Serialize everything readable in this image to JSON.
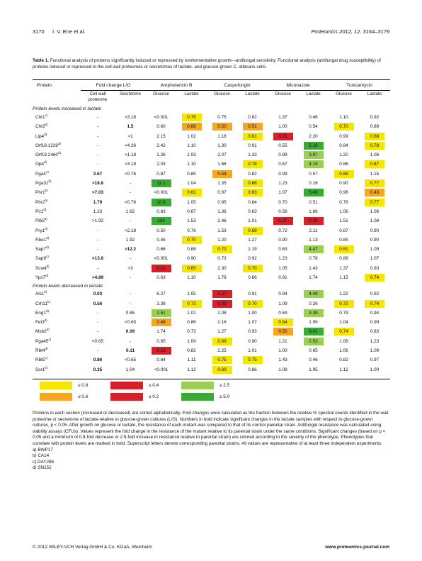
{
  "header": {
    "page_number": "3170",
    "authors": "I. V. Ene et al.",
    "journal": "Proteomics 2012, 12, 3164–3179"
  },
  "caption": {
    "label": "Table 1.",
    "text": "Functional analysis of proteins significantly induced or repressed by nonfermentative growth—antifungal sensitivity. Functional analysis (antifungal drug susceptibility) of proteins induced or repressed in the cell wall proteomes or secretomes of lactate- and glucose-grown C. albicans cells."
  },
  "colors": {
    "yellow": "#f5e600",
    "orange": "#f5a623",
    "red": "#d8202a",
    "lightgreen": "#9bcf53",
    "green": "#3aaa35"
  },
  "table": {
    "group_headers": {
      "protein": "Protein",
      "fold": "Fold change L/G",
      "amb": "Amphotericin B",
      "casp": "Caspofungin",
      "mic": "Miconazole",
      "tun": "Tunicamycin"
    },
    "sub_headers": {
      "cell_wall": "Cell wall proteome",
      "secretome": "Secretome",
      "glucose": "Glucose",
      "lactate": "Lactate"
    },
    "section_increased": "Protein levels increased in lactate",
    "section_decreased": "Protein levels decreased in lactate",
    "rows_increased": [
      {
        "p": "Cht1",
        "s": "c)",
        "cw": "-",
        "sec": ">3.18",
        "v": [
          [
            "<0.001",
            ""
          ],
          [
            "0.75",
            "y"
          ],
          [
            "0.75",
            ""
          ],
          [
            "0.82",
            ""
          ],
          [
            "1.37",
            ""
          ],
          [
            "0.46",
            ""
          ],
          [
            "1.10",
            ""
          ],
          [
            "0.92",
            ""
          ]
        ]
      },
      {
        "p": "Cht3",
        "s": "b)",
        "cw": "-",
        "sec": "1.5",
        "secb": true,
        "v": [
          [
            "0.60",
            ""
          ],
          [
            "0.68",
            "o"
          ],
          [
            "0.50",
            "o"
          ],
          [
            "0.51",
            "o"
          ],
          [
            "1.00",
            ""
          ],
          [
            "0.54",
            ""
          ],
          [
            "0.70",
            "y"
          ],
          [
            "0.89",
            ""
          ]
        ]
      },
      {
        "p": "Lip4",
        "s": "d)",
        "cw": "-",
        "sec": ">1",
        "v": [
          [
            "2.15",
            ""
          ],
          [
            "1.02",
            ""
          ],
          [
            "1.18",
            ""
          ],
          [
            "0.61",
            "y"
          ],
          [
            "0.31",
            "r"
          ],
          [
            "2.20",
            ""
          ],
          [
            "0.99",
            ""
          ],
          [
            "0.68",
            "y"
          ]
        ]
      },
      {
        "p": "Orf19.1239",
        "s": "d)",
        "cw": "-",
        "sec": ">4.36",
        "v": [
          [
            "2.42",
            ""
          ],
          [
            "1.10",
            ""
          ],
          [
            "1.30",
            ""
          ],
          [
            "0.91",
            ""
          ],
          [
            "0.55",
            ""
          ],
          [
            "5.16",
            "g"
          ],
          [
            "0.84",
            ""
          ],
          [
            "0.78",
            "y"
          ]
        ]
      },
      {
        "p": "Orf19.2460",
        "s": "d)",
        "cw": "-",
        "sec": ">1.18",
        "v": [
          [
            "1.26",
            ""
          ],
          [
            "1.03",
            ""
          ],
          [
            "2.07",
            ""
          ],
          [
            "1.33",
            ""
          ],
          [
            "0.99",
            ""
          ],
          [
            "3.97",
            "lg"
          ],
          [
            "1.20",
            ""
          ],
          [
            "1.06",
            ""
          ]
        ]
      },
      {
        "p": "Op4",
        "s": "d)",
        "cw": "-",
        "sec": ">3.18",
        "v": [
          [
            "2.03",
            ""
          ],
          [
            "1.10",
            ""
          ],
          [
            "1.66",
            ""
          ],
          [
            "0.78",
            "y"
          ],
          [
            "0.67",
            ""
          ],
          [
            "4.15",
            "lg"
          ],
          [
            "0.86",
            ""
          ],
          [
            "0.67",
            "y"
          ]
        ]
      },
      {
        "p": "Pga4",
        "s": "c)",
        "cw": "3.67",
        "cwb": true,
        "sec": "<0.76",
        "v": [
          [
            "0.87",
            ""
          ],
          [
            "0.85",
            ""
          ],
          [
            "0.54",
            "o"
          ],
          [
            "0.82",
            ""
          ],
          [
            "0.99",
            ""
          ],
          [
            "0.57",
            ""
          ],
          [
            "0.69",
            "y"
          ],
          [
            "1.15",
            ""
          ]
        ]
      },
      {
        "p": "Pga31",
        "s": "b)",
        "cw": ">18.8",
        "cwb": true,
        "sec": "-",
        "v": [
          [
            "11.1",
            "g"
          ],
          [
            "1.04",
            ""
          ],
          [
            "1.35",
            ""
          ],
          [
            "0.66",
            "y"
          ],
          [
            "1.23",
            ""
          ],
          [
            "0.16",
            ""
          ],
          [
            "0.90",
            ""
          ],
          [
            "0.77",
            "y"
          ]
        ]
      },
      {
        "p": "Phr1",
        "s": "b)",
        "cw": ">7.03",
        "cwb": true,
        "sec": "-",
        "v": [
          [
            "<0.001",
            ""
          ],
          [
            "0.61",
            "y"
          ],
          [
            "0.97",
            ""
          ],
          [
            "0.63",
            "y"
          ],
          [
            "1.07",
            ""
          ],
          [
            "5.49",
            "g"
          ],
          [
            "0.96",
            ""
          ],
          [
            "0.43",
            "o"
          ]
        ]
      },
      {
        "p": "Phr2",
        "s": "b)",
        "cw": "1.79",
        "cwb": true,
        "sec": "<0.76",
        "v": [
          [
            "10.6",
            "g"
          ],
          [
            "1.05",
            ""
          ],
          [
            "0.85",
            ""
          ],
          [
            "0.84",
            ""
          ],
          [
            "0.70",
            ""
          ],
          [
            "0.51",
            ""
          ],
          [
            "0.76",
            ""
          ],
          [
            "0.77",
            "y"
          ]
        ]
      },
      {
        "p": "Pir1",
        "s": "d)",
        "cw": "1.23",
        "sec": "1.62",
        "v": [
          [
            "0.83",
            ""
          ],
          [
            "0.87",
            ""
          ],
          [
            "1.36",
            ""
          ],
          [
            "0.83",
            ""
          ],
          [
            "0.56",
            ""
          ],
          [
            "1.86",
            ""
          ],
          [
            "1.06",
            ""
          ],
          [
            "1.06",
            ""
          ]
        ]
      },
      {
        "p": "Plb5",
        "s": "a)",
        "cw": ">1.92",
        "sec": "-",
        "v": [
          [
            "134",
            "g"
          ],
          [
            "1.53",
            ""
          ],
          [
            "2.46",
            ""
          ],
          [
            "1.01",
            ""
          ],
          [
            "0.37",
            "r"
          ],
          [
            "0.30",
            "r"
          ],
          [
            "1.51",
            ""
          ],
          [
            "1.08",
            ""
          ]
        ]
      },
      {
        "p": "Pry1",
        "s": "d)",
        "cw": "-",
        "sec": ">2.18",
        "v": [
          [
            "0.50",
            ""
          ],
          [
            "0.76",
            ""
          ],
          [
            "1.53",
            ""
          ],
          [
            "0.69",
            "y"
          ],
          [
            "0.72",
            ""
          ],
          [
            "2.11",
            ""
          ],
          [
            "0.87",
            ""
          ],
          [
            "0.90",
            ""
          ]
        ]
      },
      {
        "p": "Rbe1",
        "s": "d)",
        "cw": "-",
        "sec": "1.92",
        "v": [
          [
            "0.45",
            ""
          ],
          [
            "0.70",
            "y"
          ],
          [
            "1.20",
            ""
          ],
          [
            "1.27",
            ""
          ],
          [
            "0.90",
            ""
          ],
          [
            "1.13",
            ""
          ],
          [
            "0.85",
            ""
          ],
          [
            "0.90",
            ""
          ]
        ]
      },
      {
        "p": "Sap7",
        "s": "d)",
        "cw": "-",
        "sec": ">12.2",
        "secb": true,
        "v": [
          [
            "0.66",
            ""
          ],
          [
            "0.88",
            ""
          ],
          [
            "0.72",
            "y"
          ],
          [
            "1.19",
            ""
          ],
          [
            "0.63",
            ""
          ],
          [
            "4.47",
            "lg"
          ],
          [
            "0.61",
            "y"
          ],
          [
            "1.09",
            ""
          ]
        ]
      },
      {
        "p": "Sap9",
        "s": "c)",
        "cw": ">13.8",
        "cwb": true,
        "sec": "-",
        "v": [
          [
            "<0.001",
            ""
          ],
          [
            "0.90",
            ""
          ],
          [
            "0.73",
            ""
          ],
          [
            "0.92",
            ""
          ],
          [
            "1.23",
            ""
          ],
          [
            "0.78",
            ""
          ],
          [
            "0.88",
            ""
          ],
          [
            "1.07",
            ""
          ]
        ]
      },
      {
        "p": "Scw4",
        "s": "d)",
        "cw": "-",
        "sec": ">3",
        "v": [
          [
            "0.21",
            "r"
          ],
          [
            "0.65",
            "y"
          ],
          [
            "2.30",
            ""
          ],
          [
            "0.70",
            "y"
          ],
          [
            "1.05",
            ""
          ],
          [
            "1.43",
            ""
          ],
          [
            "1.37",
            ""
          ],
          [
            "0.93",
            ""
          ]
        ]
      },
      {
        "p": "Yps7",
        "s": "d)",
        "cw": ">4.89",
        "cwb": true,
        "sec": "-",
        "v": [
          [
            "0.63",
            ""
          ],
          [
            "1.10",
            ""
          ],
          [
            "1.78",
            ""
          ],
          [
            "0.86",
            ""
          ],
          [
            "0.91",
            ""
          ],
          [
            "1.74",
            ""
          ],
          [
            "1.15",
            ""
          ],
          [
            "0.74",
            "y"
          ]
        ]
      }
    ],
    "rows_decreased": [
      {
        "p": "Als1",
        "s": "b)",
        "cw": "0.03",
        "cwb": true,
        "sec": "-",
        "v": [
          [
            "6.27",
            ""
          ],
          [
            "1.05",
            ""
          ],
          [
            "0.37",
            "r"
          ],
          [
            "0.91",
            ""
          ],
          [
            "0.94",
            ""
          ],
          [
            "4.49",
            "lg"
          ],
          [
            "1.22",
            ""
          ],
          [
            "0.92",
            ""
          ]
        ]
      },
      {
        "p": "Crh11",
        "s": "b)",
        "cw": "0.56",
        "cwb": true,
        "sec": "-",
        "v": [
          [
            "3.39",
            ""
          ],
          [
            "0.73",
            "y"
          ],
          [
            "0.39",
            "r"
          ],
          [
            "0.70",
            "y"
          ],
          [
            "1.09",
            ""
          ],
          [
            "0.26",
            ""
          ],
          [
            "0.72",
            "y"
          ],
          [
            "0.74",
            "y"
          ]
        ]
      },
      {
        "p": "Eng1",
        "s": "d)",
        "cw": "-",
        "sec": "0.85",
        "v": [
          [
            "2.51",
            "lg"
          ],
          [
            "1.01",
            ""
          ],
          [
            "1.08",
            ""
          ],
          [
            "1.00",
            ""
          ],
          [
            "0.69",
            ""
          ],
          [
            "3.39",
            "lg"
          ],
          [
            "0.79",
            ""
          ],
          [
            "0.94",
            ""
          ]
        ]
      },
      {
        "p": "Fet3",
        "s": "d)",
        "cw": "-",
        "sec": "<0.65",
        "v": [
          [
            "0.48",
            "o"
          ],
          [
            "0.86",
            ""
          ],
          [
            "2.16",
            ""
          ],
          [
            "1.07",
            ""
          ],
          [
            "0.64",
            "y"
          ],
          [
            "1.99",
            ""
          ],
          [
            "1.04",
            ""
          ],
          [
            "0.99",
            ""
          ]
        ]
      },
      {
        "p": "Msb2",
        "s": "d)",
        "cw": "-",
        "sec": "0.09",
        "secb": true,
        "v": [
          [
            "1.74",
            ""
          ],
          [
            "0.73",
            ""
          ],
          [
            "1.27",
            ""
          ],
          [
            "0.93",
            ""
          ],
          [
            "0.50",
            "o"
          ],
          [
            "9.41",
            "g"
          ],
          [
            "0.74",
            "y"
          ],
          [
            "0.83",
            ""
          ]
        ]
      },
      {
        "p": "Pga45",
        "s": "c)",
        "cw": "<0.65",
        "sec": "-",
        "v": [
          [
            "0.65",
            ""
          ],
          [
            "1.09",
            ""
          ],
          [
            "0.69",
            "y"
          ],
          [
            "0.90",
            ""
          ],
          [
            "1.21",
            ""
          ],
          [
            "2.53",
            "lg"
          ],
          [
            "1.08",
            ""
          ],
          [
            "1.23",
            ""
          ]
        ]
      },
      {
        "p": "Rbt4",
        "s": "d)",
        "cw": "-",
        "sec": "0.11",
        "secb": true,
        "v": [
          [
            "0.18",
            "r"
          ],
          [
            "0.82",
            ""
          ],
          [
            "2.25",
            ""
          ],
          [
            "1.01",
            ""
          ],
          [
            "1.00",
            ""
          ],
          [
            "0.65",
            ""
          ],
          [
            "1.06",
            ""
          ],
          [
            "1.09",
            ""
          ]
        ]
      },
      {
        "p": "Rbt5",
        "s": "c)",
        "cw": "0.86",
        "cwb": true,
        "sec": "<0.65",
        "v": [
          [
            "0.64",
            ""
          ],
          [
            "1.11",
            ""
          ],
          [
            "0.75",
            "y"
          ],
          [
            "0.75",
            "y"
          ],
          [
            "1.43",
            ""
          ],
          [
            "0.46",
            ""
          ],
          [
            "0.82",
            ""
          ],
          [
            "0.97",
            ""
          ]
        ]
      },
      {
        "p": "Ssr1",
        "s": "b)",
        "cw": "0.35",
        "cwb": true,
        "sec": "1.04",
        "v": [
          [
            "<0.001",
            ""
          ],
          [
            "1.12",
            ""
          ],
          [
            "0.60",
            "y"
          ],
          [
            "0.86",
            ""
          ],
          [
            "1.09",
            ""
          ],
          [
            "1.95",
            ""
          ],
          [
            "1.12",
            ""
          ],
          [
            "1.00",
            ""
          ]
        ]
      }
    ]
  },
  "legend": {
    "y": "≤ 0.8",
    "o": "≤ 0.6",
    "r1": "≤ 0.4",
    "r2": "≤ 0.2",
    "lg": "≥ 2.5",
    "g": "≥ 5.0"
  },
  "footnote": {
    "text": "Proteins in each section (increased or decreased) are sorted alphabetically. Fold changes were calculated as the fraction between the relative % spectral counts identified in the wall proteome or secretome of lactate-relative to glucose-grown cultures (L/G). Numbers in bold indicate significant changes in the lactate samples with respect to glucose-grown cultures, p < 0.05. After growth on glucose or lactate, the resistance of each mutant was compared to that of its control parental strain. Antifungal resistance was calculated using viability assays (CFUs). Values represent the fold change in the resistance of the mutant relative to its parental strain under the same conditions. Significant changes (based on p < 0.05 and a minimum of 0.8-fold decrease or 2.5-fold increase in resistance relative to parental strain) are colored according to the severity of the phenotype. Phenotypes that correlate with protein levels are marked in bold. Superscript letters denote corresponding parental strains. All values are representative of at least three independent experiments.",
    "notes": [
      "a) BWP17",
      "b) CA14",
      "c) DAY286",
      "d) SN152"
    ]
  },
  "bottom": {
    "copyright": "© 2012 WILEY-VCH Verlag GmbH & Co. KGaA, Weinheim",
    "website": "www.proteomics-journal.com"
  }
}
